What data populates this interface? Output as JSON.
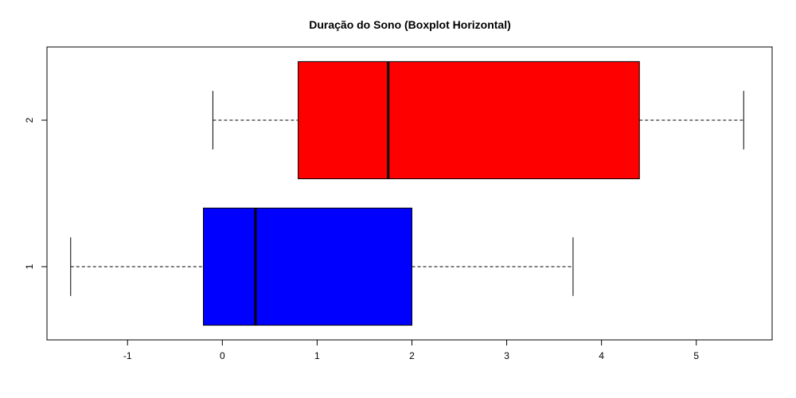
{
  "chart_data": {
    "type": "boxplot",
    "orientation": "horizontal",
    "title": "Duração do Sono (Boxplot Horizontal)",
    "xlabel": "",
    "ylabel": "",
    "xlim": [
      -1.85,
      5.8
    ],
    "ylim": [
      0.5,
      2.5
    ],
    "x_ticks": [
      -1,
      0,
      1,
      2,
      3,
      4,
      5
    ],
    "x_tick_labels": [
      "-1",
      "0",
      "1",
      "2",
      "3",
      "4",
      "5"
    ],
    "categories": [
      "1",
      "2"
    ],
    "boxes": [
      {
        "category": "1",
        "whisker_low": -1.6,
        "q1": -0.2,
        "median": 0.35,
        "q3": 2.0,
        "whisker_high": 3.7,
        "color": "#0000ff"
      },
      {
        "category": "2",
        "whisker_low": -0.1,
        "q1": 0.8,
        "median": 1.75,
        "q3": 4.4,
        "whisker_high": 5.5,
        "color": "#ff0000"
      }
    ],
    "grid": false,
    "legend": "none"
  }
}
